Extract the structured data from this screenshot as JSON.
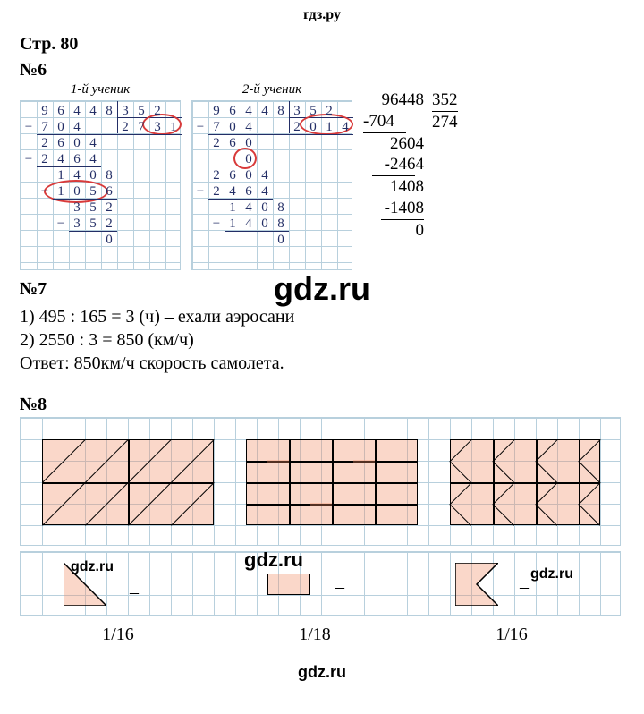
{
  "header": "гдз.ру",
  "page_ref": "Стр. 80",
  "task6": {
    "num": "№6",
    "student1_label": "1-й ученик",
    "student2_label": "2-й ученик",
    "grid1_rows": [
      " 96448352",
      "-704  2731",
      " 2604",
      "-2464",
      "  1408",
      " -1056",
      "   352",
      "  -352",
      "     0"
    ],
    "grid2_rows": [
      " 96448352",
      "-704  2014",
      " 260",
      "   0",
      " 2604",
      "-2464",
      "  1408",
      " -1408",
      "     0"
    ],
    "plain_division": {
      "dividend": "96448",
      "divisor": "352",
      "quotient": "274",
      "steps": [
        "704",
        "2604",
        "2464",
        "1408",
        "1408",
        "0"
      ],
      "colors": {
        "text": "#000000"
      }
    }
  },
  "task7": {
    "num": "№7",
    "line1": "1) 495 : 165 = 3 (ч) – ехали аэросани",
    "line2": "2) 2550 : 3 = 850 (км/ч)",
    "answer": "Ответ: 850км/ч скорость самолета."
  },
  "task8": {
    "num": "№8",
    "fractions": [
      "1/16",
      "1/18",
      "1/16"
    ],
    "shape_fill": "rgba(240,140,100,0.35)",
    "shape_border": "#000000",
    "grid_color": "#b8d0dd"
  },
  "watermarks": {
    "big": "gdz.ru",
    "small": "gdz.ru",
    "footer": "gdz.ru"
  },
  "colors": {
    "bg": "#ffffff",
    "ink": "#232e66",
    "error_circle": "#d83a3a"
  }
}
